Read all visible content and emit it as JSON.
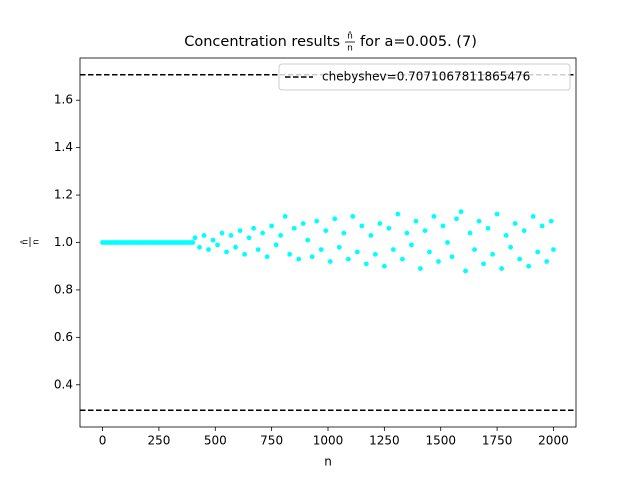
{
  "chart_data": {
    "type": "scatter",
    "title_prefix": "Concentration results",
    "title_fraction": {
      "numerator": "n̂",
      "denominator": "n"
    },
    "title_suffix": "for a=0.005. (7)",
    "x_label": "n",
    "y_label": {
      "numerator": "n̂",
      "denominator": "n"
    },
    "xlim": [
      -100,
      2100
    ],
    "ylim": [
      0.222,
      1.778
    ],
    "xticks": [
      0,
      250,
      500,
      750,
      1000,
      1250,
      1500,
      1750,
      2000
    ],
    "yticks": [
      0.4,
      0.6,
      0.8,
      {
        "value": 1,
        "label": "1.0"
      },
      1.2,
      1.4,
      1.6
    ],
    "grid": false,
    "legend_position": "upper-right",
    "hlines": {
      "name": "chebyshev=0.7071067811865476",
      "color": "#000000",
      "values": [
        1.7071067811865477,
        0.2928932188134524
      ]
    },
    "series": [
      {
        "color": "#00ffff",
        "x": [
          0,
          10,
          20,
          30,
          40,
          50,
          60,
          70,
          80,
          90,
          100,
          110,
          120,
          130,
          140,
          150,
          160,
          170,
          180,
          190,
          200,
          210,
          220,
          230,
          240,
          250,
          260,
          270,
          280,
          290,
          300,
          310,
          320,
          330,
          340,
          350,
          360,
          370,
          380,
          390,
          400,
          410,
          430,
          450,
          470,
          490,
          510,
          530,
          550,
          570,
          590,
          610,
          630,
          650,
          670,
          690,
          710,
          730,
          750,
          770,
          790,
          810,
          830,
          850,
          870,
          890,
          910,
          930,
          950,
          970,
          990,
          1010,
          1030,
          1050,
          1070,
          1090,
          1110,
          1130,
          1150,
          1170,
          1190,
          1210,
          1230,
          1250,
          1270,
          1290,
          1310,
          1330,
          1350,
          1370,
          1390,
          1410,
          1430,
          1450,
          1470,
          1490,
          1510,
          1530,
          1550,
          1570,
          1590,
          1610,
          1630,
          1650,
          1670,
          1690,
          1710,
          1730,
          1750,
          1770,
          1790,
          1810,
          1830,
          1850,
          1870,
          1890,
          1910,
          1930,
          1950,
          1970,
          1990,
          2000
        ],
        "values": [
          1,
          1,
          1,
          1,
          1,
          1,
          1,
          1,
          1,
          1,
          1,
          1,
          1,
          1,
          1,
          1,
          1,
          1,
          1,
          1,
          1,
          1,
          1,
          1,
          1,
          1,
          1,
          1,
          1,
          1,
          1,
          1,
          1,
          1,
          1,
          1,
          1,
          1,
          1,
          1,
          1,
          1.02,
          0.98,
          1.03,
          0.97,
          1.01,
          0.99,
          1.04,
          0.96,
          1.03,
          0.98,
          1.05,
          0.95,
          1.02,
          1.06,
          0.97,
          1.04,
          0.94,
          1.07,
          0.99,
          1.03,
          1.11,
          0.95,
          1.06,
          0.93,
          1.08,
          1.01,
          0.94,
          1.09,
          0.97,
          1.05,
          0.92,
          1.1,
          0.98,
          1.04,
          0.93,
          1.11,
          0.96,
          1.07,
          0.91,
          1.03,
          0.95,
          1.08,
          0.9,
          1.06,
          0.97,
          1.12,
          0.93,
          1.04,
          0.99,
          1.09,
          0.89,
          1.05,
          0.96,
          1.11,
          0.92,
          1.07,
          1.0,
          0.94,
          1.1,
          1.13,
          0.88,
          1.04,
          0.97,
          1.09,
          0.91,
          1.06,
          0.95,
          1.12,
          0.89,
          1.03,
          0.98,
          1.08,
          0.93,
          1.05,
          0.9,
          1.11,
          0.96,
          1.07,
          0.92,
          1.09,
          0.97
        ]
      }
    ]
  }
}
